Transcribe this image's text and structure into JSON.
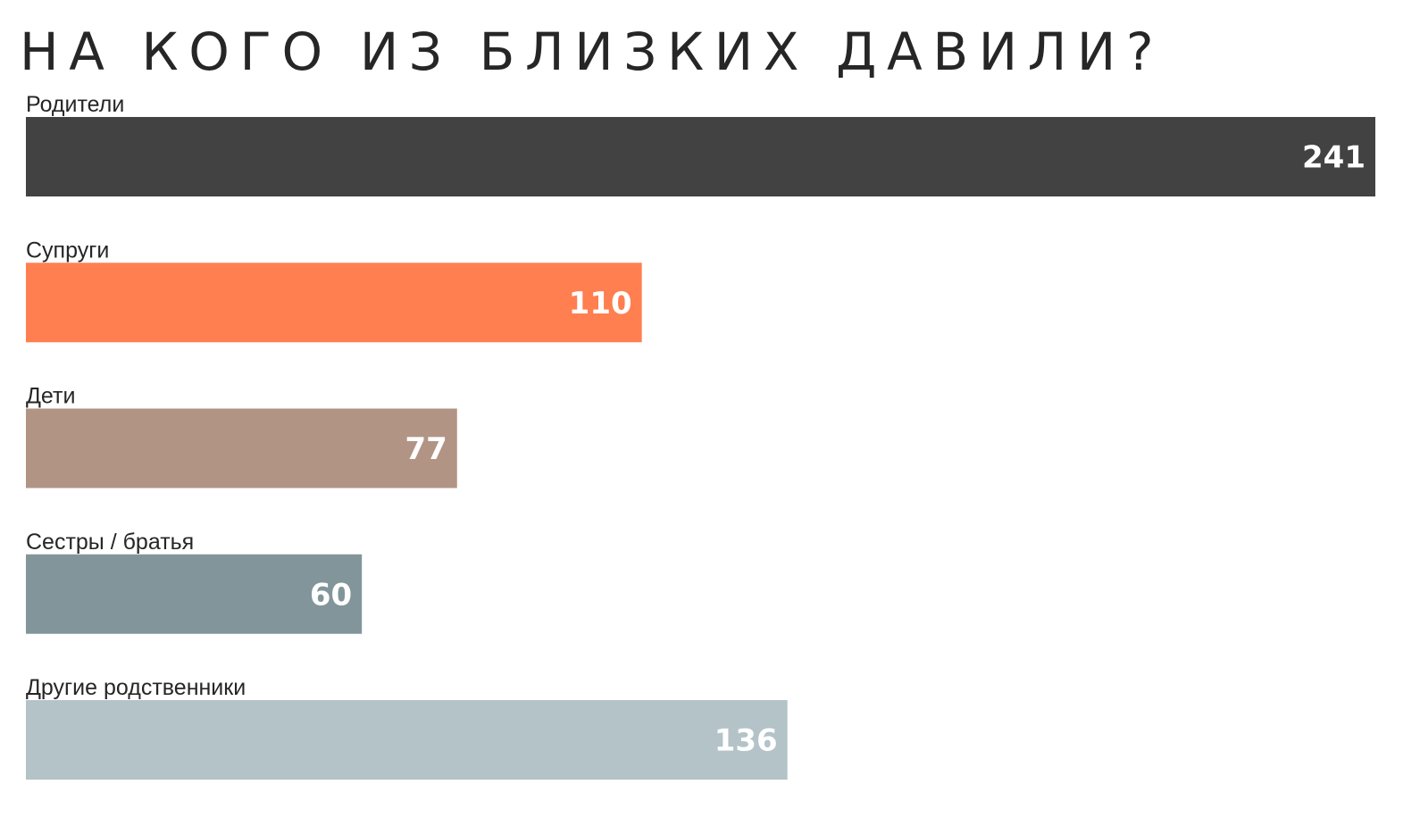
{
  "chart_data": {
    "type": "bar",
    "orientation": "horizontal",
    "title": "НА КОГО ИЗ БЛИЗКИХ ДАВИЛИ?",
    "categories": [
      "Родители",
      "Супруги",
      "Дети",
      "Сестры / братья",
      "Другие родственники"
    ],
    "values": [
      241,
      110,
      77,
      60,
      136
    ],
    "colors": [
      "#424242",
      "#ff7f50",
      "#b29485",
      "#82959a",
      "#b3c3c8"
    ],
    "value_label_color": "#ffffff",
    "data_labels": true,
    "grid": false,
    "xlim": [
      0,
      241
    ]
  }
}
